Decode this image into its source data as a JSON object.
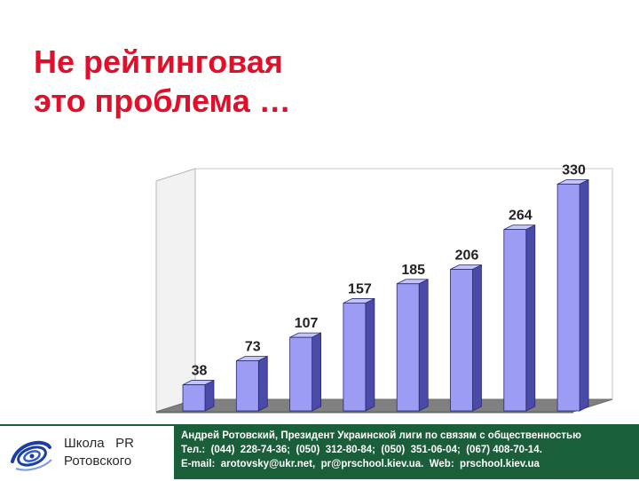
{
  "slide": {
    "title_line1": "Не рейтинговая",
    "title_line2": "это проблема …"
  },
  "colors": {
    "title": "#e0102a",
    "bar_front": "#9c9cf4",
    "bar_side": "#4a4aa8",
    "bar_top": "#c4c4fa",
    "floor": "#808080",
    "footer_bg": "#1b5e3a"
  },
  "chart_data": {
    "type": "bar",
    "title": "",
    "xlabel": "",
    "ylabel": "",
    "categories": [
      "",
      "",
      "",
      "",
      "",
      "",
      "",
      ""
    ],
    "values": [
      38,
      73,
      107,
      157,
      185,
      206,
      264,
      330
    ],
    "ylim": [
      0,
      350
    ],
    "data_labels": [
      "38",
      "73",
      "107",
      "157",
      "185",
      "206",
      "264",
      "330"
    ],
    "style": "3d-column",
    "grid": false,
    "legend": "none"
  },
  "footer": {
    "logo_icon": "spiral-logo-icon",
    "school_line1": "Школа   PR",
    "school_line2": "Ротовского",
    "contact_line1": "Андрей Ротовский, Президент Украинской лиги по связям с общественностью",
    "contact_line2": "Тел.:  (044)  228-74-36;  (050)  312-80-84;  (050)  351-06-04;  (067) 408-70-14.",
    "contact_line3": "E-mail:  arotovsky@ukr.net,  pr@prschool.kiev.ua.  Web:  prschool.kiev.ua"
  }
}
